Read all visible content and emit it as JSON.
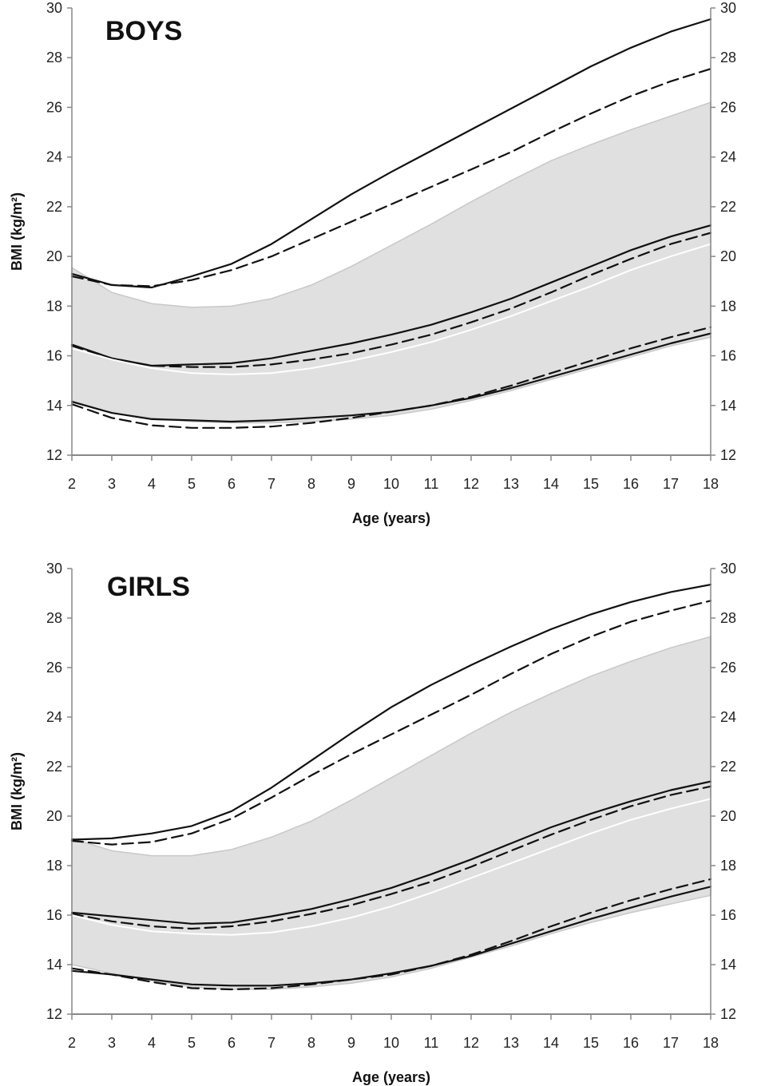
{
  "chart_data": [
    {
      "type": "line",
      "title": "BOYS",
      "xlabel": "Age (years)",
      "ylabel": "BMI (kg/m²)",
      "xlim": [
        2,
        18
      ],
      "ylim": [
        12,
        30
      ],
      "x": [
        2,
        3,
        4,
        5,
        6,
        7,
        8,
        9,
        10,
        11,
        12,
        13,
        14,
        15,
        16,
        17,
        18
      ],
      "xticks": [
        "2",
        "3",
        "4",
        "5",
        "6",
        "7",
        "8",
        "9",
        "10",
        "11",
        "12",
        "13",
        "14",
        "15",
        "16",
        "17",
        "18"
      ],
      "yticks": [
        "12",
        "14",
        "16",
        "18",
        "20",
        "22",
        "24",
        "26",
        "28",
        "30"
      ],
      "right_axis": true,
      "grid": false,
      "band": {
        "color": "#e0e0e0",
        "upper": [
          19.55,
          18.55,
          18.1,
          17.95,
          18.0,
          18.3,
          18.85,
          19.6,
          20.45,
          21.3,
          22.2,
          23.05,
          23.85,
          24.5,
          25.1,
          25.65,
          26.2
        ],
        "lower": [
          14.2,
          13.7,
          13.5,
          13.35,
          13.3,
          13.3,
          13.35,
          13.45,
          13.6,
          13.85,
          14.2,
          14.6,
          15.05,
          15.5,
          15.95,
          16.4,
          16.75
        ]
      },
      "series": [
        {
          "style": "solid",
          "color": "#111111",
          "values": [
            19.3,
            18.85,
            18.75,
            19.2,
            19.7,
            20.5,
            21.5,
            22.5,
            23.4,
            24.25,
            25.1,
            25.95,
            26.8,
            27.65,
            28.4,
            29.05,
            29.55
          ]
        },
        {
          "style": "dashed",
          "color": "#111111",
          "values": [
            19.2,
            18.85,
            18.8,
            19.05,
            19.45,
            20.0,
            20.7,
            21.4,
            22.1,
            22.8,
            23.5,
            24.2,
            25.0,
            25.75,
            26.45,
            27.05,
            27.55
          ]
        },
        {
          "style": "solid",
          "color": "#111111",
          "values": [
            16.45,
            15.9,
            15.6,
            15.65,
            15.7,
            15.9,
            16.2,
            16.5,
            16.85,
            17.25,
            17.75,
            18.3,
            18.95,
            19.6,
            20.25,
            20.8,
            21.25
          ]
        },
        {
          "style": "dashed",
          "color": "#111111",
          "values": [
            16.4,
            15.9,
            15.6,
            15.55,
            15.55,
            15.65,
            15.85,
            16.1,
            16.45,
            16.85,
            17.35,
            17.9,
            18.55,
            19.25,
            19.9,
            20.5,
            20.95
          ]
        },
        {
          "style": "solid",
          "color": "#ffffff",
          "values": [
            16.3,
            15.85,
            15.5,
            15.3,
            15.25,
            15.3,
            15.5,
            15.8,
            16.15,
            16.55,
            17.05,
            17.6,
            18.2,
            18.8,
            19.45,
            20.0,
            20.5
          ]
        },
        {
          "style": "solid",
          "color": "#111111",
          "values": [
            14.15,
            13.7,
            13.45,
            13.4,
            13.35,
            13.4,
            13.5,
            13.6,
            13.75,
            14.0,
            14.3,
            14.7,
            15.15,
            15.6,
            16.05,
            16.5,
            16.9
          ]
        },
        {
          "style": "dashed",
          "color": "#111111",
          "values": [
            14.05,
            13.5,
            13.2,
            13.1,
            13.1,
            13.15,
            13.3,
            13.5,
            13.75,
            14.0,
            14.35,
            14.8,
            15.3,
            15.8,
            16.3,
            16.75,
            17.15
          ]
        }
      ]
    },
    {
      "type": "line",
      "title": "GIRLS",
      "xlabel": "Age (years)",
      "ylabel": "BMI (kg/m²)",
      "xlim": [
        2,
        18
      ],
      "ylim": [
        12,
        30
      ],
      "x": [
        2,
        3,
        4,
        5,
        6,
        7,
        8,
        9,
        10,
        11,
        12,
        13,
        14,
        15,
        16,
        17,
        18
      ],
      "xticks": [
        "2",
        "3",
        "4",
        "5",
        "6",
        "7",
        "8",
        "9",
        "10",
        "11",
        "12",
        "13",
        "14",
        "15",
        "16",
        "17",
        "18"
      ],
      "yticks": [
        "12",
        "14",
        "16",
        "18",
        "20",
        "22",
        "24",
        "26",
        "28",
        "30"
      ],
      "right_axis": true,
      "grid": false,
      "band": {
        "color": "#e0e0e0",
        "upper": [
          19.1,
          18.6,
          18.4,
          18.4,
          18.65,
          19.15,
          19.8,
          20.65,
          21.55,
          22.45,
          23.35,
          24.2,
          24.95,
          25.65,
          26.25,
          26.8,
          27.25
        ],
        "lower": [
          14.0,
          13.65,
          13.35,
          13.1,
          13.0,
          13.0,
          13.1,
          13.25,
          13.5,
          13.85,
          14.3,
          14.75,
          15.25,
          15.7,
          16.1,
          16.45,
          16.8
        ]
      },
      "series": [
        {
          "style": "solid",
          "color": "#111111",
          "values": [
            19.05,
            19.1,
            19.3,
            19.6,
            20.2,
            21.15,
            22.25,
            23.35,
            24.4,
            25.3,
            26.1,
            26.85,
            27.55,
            28.15,
            28.65,
            29.05,
            29.35
          ]
        },
        {
          "style": "dashed",
          "color": "#111111",
          "values": [
            19.0,
            18.85,
            18.95,
            19.3,
            19.9,
            20.75,
            21.65,
            22.5,
            23.3,
            24.1,
            24.9,
            25.75,
            26.55,
            27.25,
            27.85,
            28.3,
            28.7
          ]
        },
        {
          "style": "solid",
          "color": "#111111",
          "values": [
            16.1,
            15.95,
            15.8,
            15.65,
            15.7,
            15.95,
            16.25,
            16.65,
            17.1,
            17.65,
            18.25,
            18.9,
            19.55,
            20.1,
            20.6,
            21.05,
            21.4
          ]
        },
        {
          "style": "dashed",
          "color": "#111111",
          "values": [
            16.05,
            15.75,
            15.55,
            15.45,
            15.55,
            15.75,
            16.05,
            16.4,
            16.85,
            17.35,
            17.95,
            18.6,
            19.25,
            19.85,
            20.4,
            20.85,
            21.2
          ]
        },
        {
          "style": "solid",
          "color": "#ffffff",
          "values": [
            16.0,
            15.6,
            15.35,
            15.25,
            15.2,
            15.3,
            15.55,
            15.9,
            16.35,
            16.9,
            17.5,
            18.1,
            18.7,
            19.3,
            19.85,
            20.3,
            20.7
          ]
        },
        {
          "style": "solid",
          "color": "#111111",
          "values": [
            13.75,
            13.6,
            13.4,
            13.2,
            13.15,
            13.15,
            13.25,
            13.4,
            13.65,
            13.95,
            14.35,
            14.85,
            15.35,
            15.85,
            16.3,
            16.75,
            17.15
          ]
        },
        {
          "style": "dashed",
          "color": "#111111",
          "values": [
            13.85,
            13.6,
            13.3,
            13.05,
            13.0,
            13.05,
            13.2,
            13.4,
            13.6,
            13.95,
            14.4,
            14.95,
            15.55,
            16.1,
            16.6,
            17.05,
            17.45
          ]
        }
      ]
    }
  ]
}
